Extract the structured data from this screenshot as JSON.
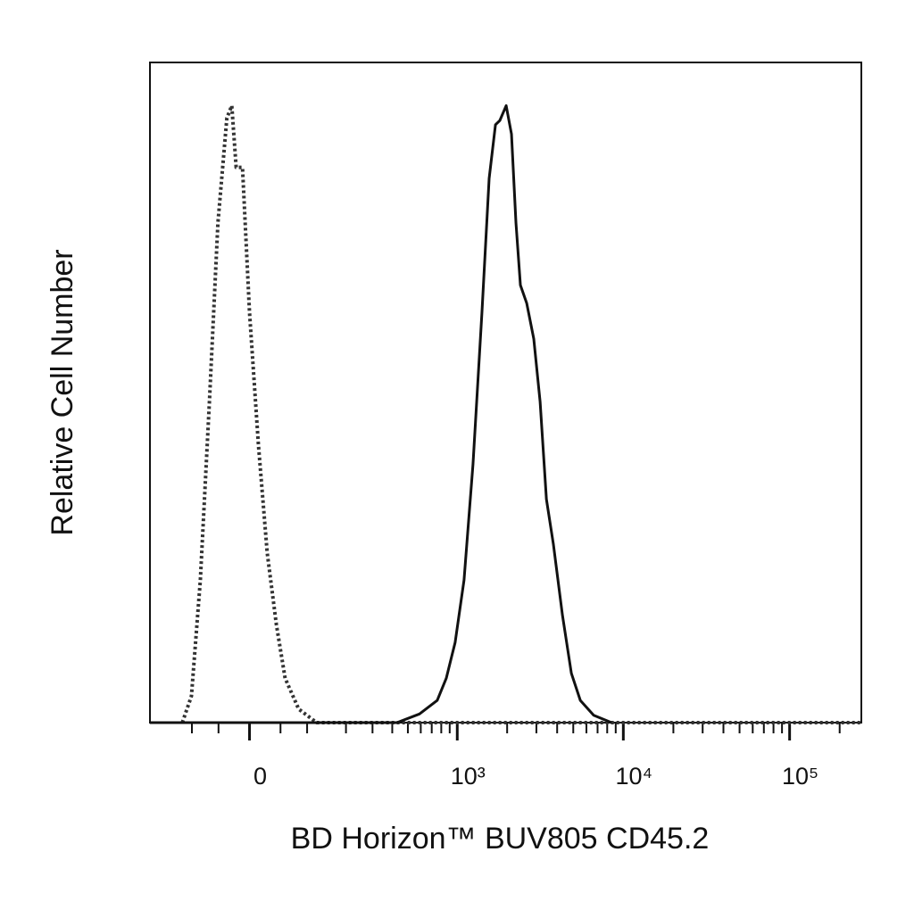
{
  "chart_data": {
    "type": "histogram-overlay",
    "x_label": "BD Horizon™ BUV805 CD45.2",
    "y_label": "Relative Cell Number",
    "xscale": "biexponential",
    "xlim": [
      -210,
      270000
    ],
    "ylim": [
      0,
      107
    ],
    "xticks": [
      0,
      {
        "value": 1000,
        "label": "10³"
      },
      {
        "value": 10000,
        "label": "10⁴"
      },
      {
        "value": 100000,
        "label": "10⁵"
      }
    ],
    "xminorticks": [
      -100,
      -50,
      50,
      100,
      200,
      300,
      400,
      500,
      600,
      700,
      800,
      900,
      2000,
      3000,
      4000,
      5000,
      6000,
      7000,
      8000,
      9000,
      20000,
      30000,
      40000,
      50000,
      60000,
      70000,
      80000,
      90000,
      200000
    ],
    "series": [
      {
        "color": "#333333",
        "dash": "dotted",
        "x": [
          -121,
          -101,
          -83,
          -66,
          -51,
          -36,
          -28,
          -21,
          -11,
          0,
          14,
          28,
          43,
          58,
          83,
          121,
          270000
        ],
        "values": [
          0,
          4.3,
          23.1,
          52,
          81,
          98,
          100,
          90,
          90,
          66.5,
          45,
          27.5,
          15.9,
          7.2,
          2.2,
          0,
          0
        ]
      },
      {
        "color": "#111111",
        "dash": "solid",
        "x": [
          -210,
          428,
          589,
          756,
          858,
          971,
          1099,
          1245,
          1410,
          1558,
          1701,
          1808,
          1973,
          2124,
          2260,
          2404,
          2622,
          2893,
          3159,
          3447,
          3797,
          4305,
          4870,
          5514,
          6633,
          8498
        ],
        "values": [
          0,
          0,
          1.4,
          3.6,
          7.2,
          13,
          23.1,
          41.9,
          66.5,
          88.2,
          96.9,
          97.6,
          100,
          95.4,
          81,
          70.9,
          68,
          62.2,
          52,
          36.2,
          28.9,
          17.4,
          8,
          3.6,
          1.2,
          0
        ]
      }
    ]
  }
}
